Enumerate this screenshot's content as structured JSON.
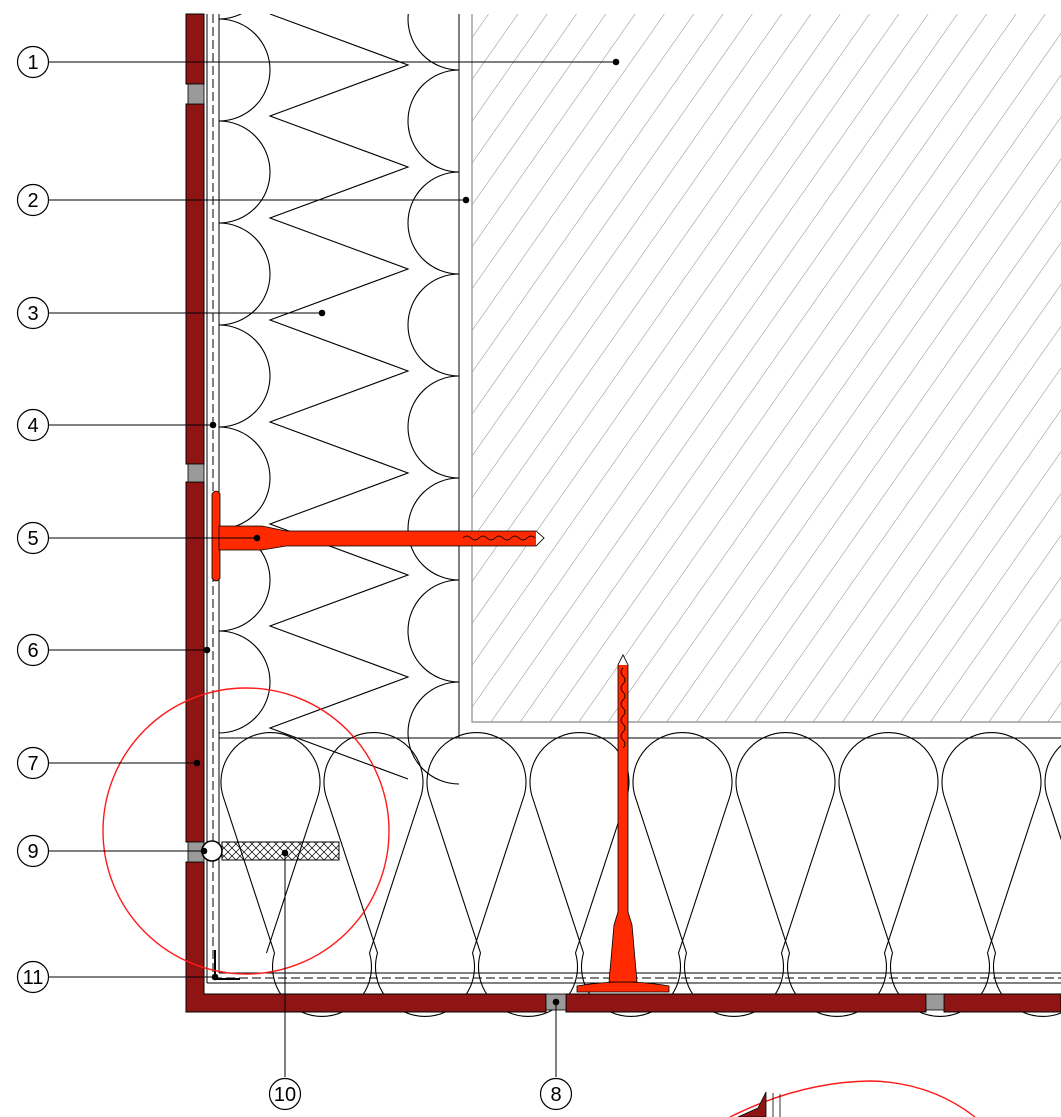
{
  "callouts": [
    {
      "id": "1",
      "label": "1"
    },
    {
      "id": "2",
      "label": "2"
    },
    {
      "id": "3",
      "label": "3"
    },
    {
      "id": "4",
      "label": "4"
    },
    {
      "id": "5",
      "label": "5"
    },
    {
      "id": "6",
      "label": "6"
    },
    {
      "id": "7",
      "label": "7"
    },
    {
      "id": "8",
      "label": "8"
    },
    {
      "id": "9",
      "label": "9"
    },
    {
      "id": "10",
      "label": "10"
    },
    {
      "id": "11",
      "label": "11"
    }
  ],
  "colors": {
    "cladding": "#8f1414",
    "anchor": "#ff2a00",
    "detail_circle": "#ff1a1a",
    "joint": "#9a9a9a",
    "line": "#000000",
    "hatch": "#7a7a7a"
  }
}
